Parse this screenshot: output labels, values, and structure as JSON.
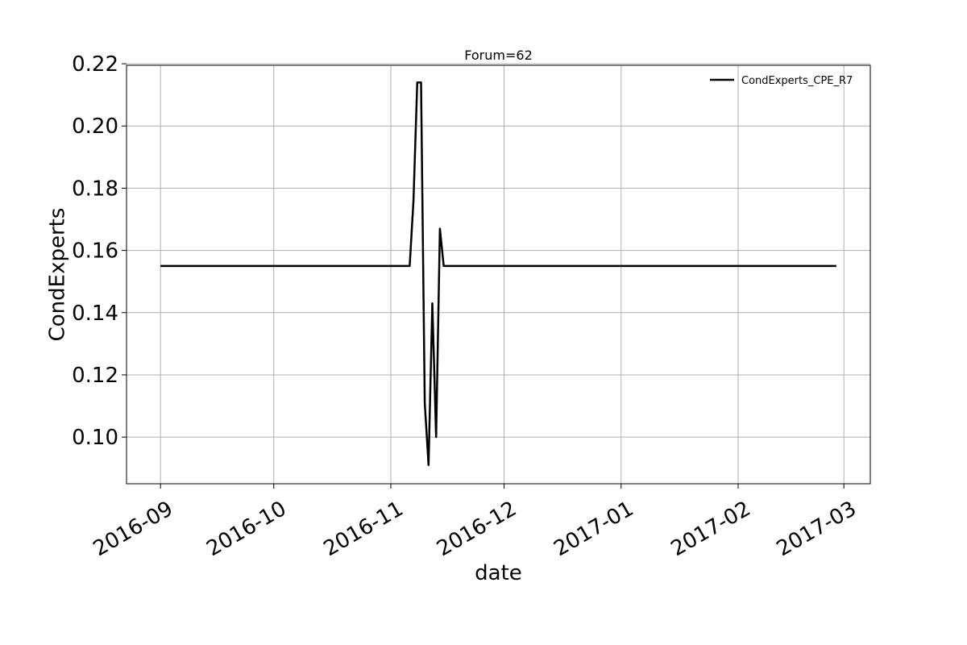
{
  "chart_data": {
    "type": "line",
    "title": "Forum=62",
    "xlabel": "date",
    "ylabel": "CondExperts",
    "x_tick_labels": [
      "2016-09",
      "2016-10",
      "2016-11",
      "2016-12",
      "2017-01",
      "2017-02",
      "2017-03"
    ],
    "x_tick_dates": [
      "2016-09-01",
      "2016-10-01",
      "2016-11-01",
      "2016-12-01",
      "2017-01-01",
      "2017-02-01",
      "2017-03-01"
    ],
    "y_tick_labels": [
      "0.10",
      "0.12",
      "0.14",
      "0.16",
      "0.18",
      "0.20",
      "0.22"
    ],
    "y_ticks": [
      0.1,
      0.12,
      0.14,
      0.16,
      0.18,
      0.2,
      0.22
    ],
    "xlim": [
      "2016-08-23",
      "2017-03-08"
    ],
    "ylim": [
      0.085,
      0.2195
    ],
    "grid": true,
    "legend_position": "top-right",
    "series": [
      {
        "name": "CondExperts_CPE_R7",
        "color": "#000000",
        "x": [
          "2016-09-01",
          "2016-11-06",
          "2016-11-07",
          "2016-11-08",
          "2016-11-09",
          "2016-11-10",
          "2016-11-11",
          "2016-11-12",
          "2016-11-13",
          "2016-11-14",
          "2016-11-15",
          "2016-11-16",
          "2017-02-27"
        ],
        "y": [
          0.155,
          0.155,
          0.176,
          0.214,
          0.214,
          0.111,
          0.091,
          0.143,
          0.1,
          0.167,
          0.155,
          0.155,
          0.155
        ]
      }
    ]
  }
}
